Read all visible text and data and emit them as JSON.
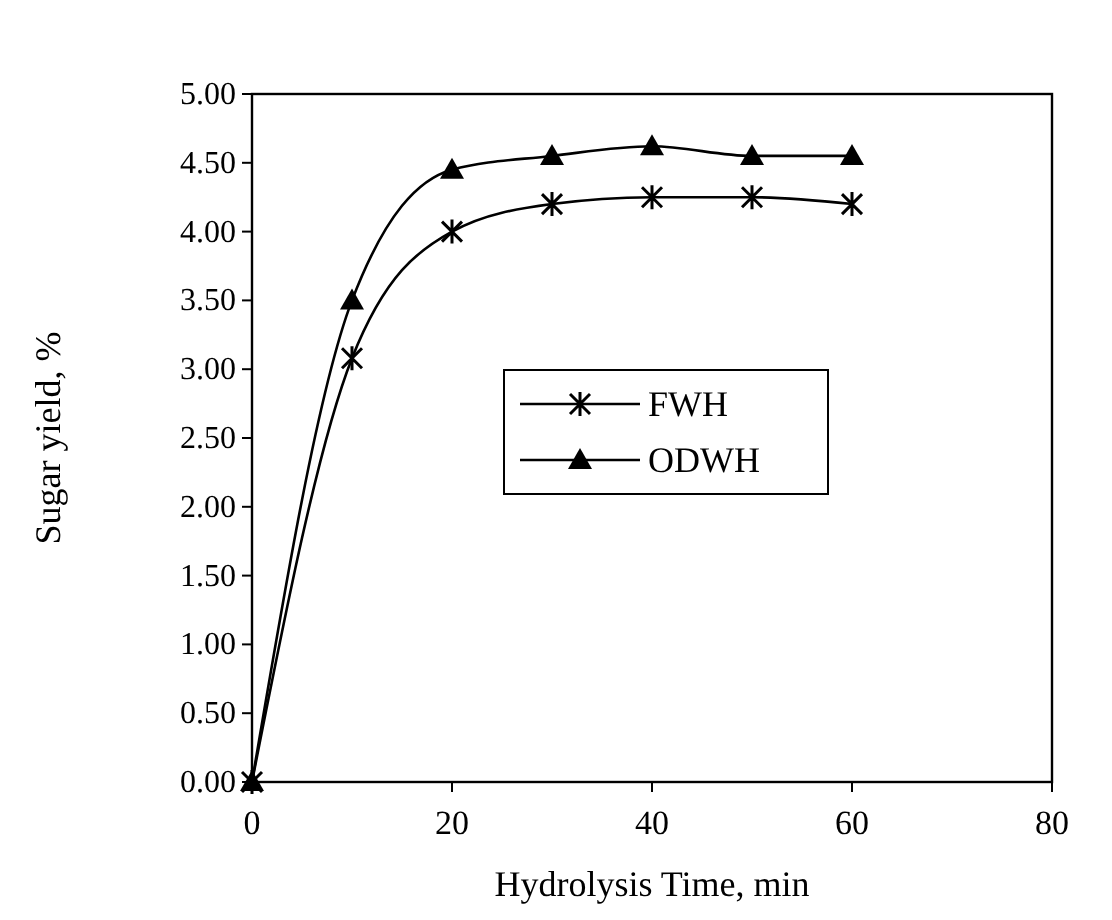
{
  "chart_data": {
    "type": "line",
    "xlabel": "Hydrolysis Time, min",
    "ylabel": "Sugar yield, %",
    "x": [
      0,
      10,
      20,
      30,
      40,
      50,
      60
    ],
    "series": [
      {
        "name": "FWH",
        "color": "#000000",
        "marker": "cross",
        "values": [
          0,
          3.08,
          4.0,
          4.2,
          4.25,
          4.25,
          4.2
        ]
      },
      {
        "name": "ODWH",
        "color": "#000000",
        "marker": "triangle",
        "values": [
          0,
          3.5,
          4.45,
          4.55,
          4.62,
          4.55,
          4.55
        ]
      }
    ],
    "xlim": [
      0,
      80
    ],
    "xticks": [
      0,
      20,
      40,
      60,
      80
    ],
    "ylim": [
      0,
      5
    ],
    "yticks": [
      {
        "value": 0,
        "label": "0.00"
      },
      {
        "value": 0.5,
        "label": "0.50"
      },
      {
        "value": 1,
        "label": "1.00"
      },
      {
        "value": 1.5,
        "label": "1.50"
      },
      {
        "value": 2,
        "label": "2.00"
      },
      {
        "value": 2.5,
        "label": "2.50"
      },
      {
        "value": 3,
        "label": "3.00"
      },
      {
        "value": 3.5,
        "label": "3.50"
      },
      {
        "value": 4,
        "label": "4.00"
      },
      {
        "value": 4.5,
        "label": "4.50"
      },
      {
        "value": 5,
        "label": "5.00"
      }
    ],
    "grid": false,
    "legend": "right",
    "line_style": "solid"
  }
}
